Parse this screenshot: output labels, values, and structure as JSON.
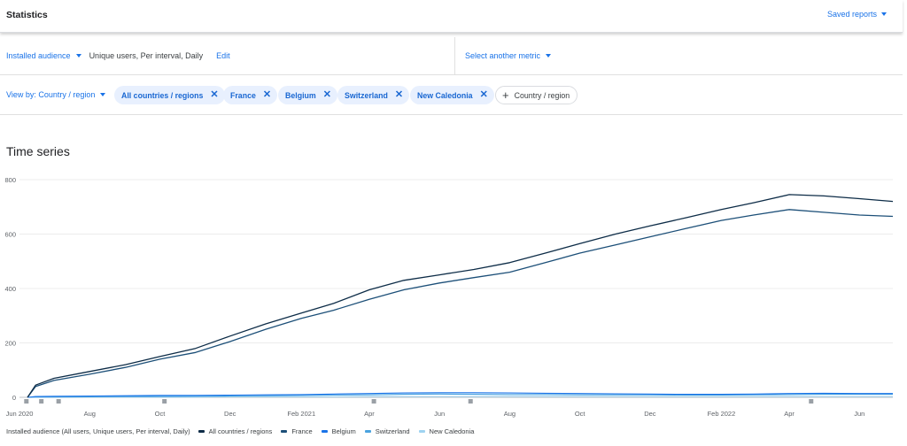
{
  "header": {
    "title": "Statistics",
    "saved_reports": "Saved reports"
  },
  "metric": {
    "name": "Installed audience",
    "description": "Unique users, Per interval, Daily",
    "edit": "Edit",
    "select_another": "Select another metric"
  },
  "filters": {
    "view_by": "View by: Country / region",
    "chips": [
      "All countries / regions",
      "France",
      "Belgium",
      "Switzerland",
      "New Caledonia"
    ],
    "add_chip": "Country / region"
  },
  "section_title": "Time series",
  "legend": {
    "title": "Installed audience (All users, Unique users, Per interval, Daily)",
    "items": [
      "All countries / regions",
      "France",
      "Belgium",
      "Switzerland",
      "New Caledonia"
    ]
  },
  "colors": {
    "accent": "#1a73e8",
    "chip_bg": "#e8f0fe",
    "all": "#0d2c47",
    "france": "#1c4f78",
    "belgium": "#1a73e8",
    "switzerland": "#4aa3df",
    "new_caledonia": "#9fd3f1"
  },
  "chart_data": {
    "type": "line",
    "title": "",
    "xlabel": "",
    "ylabel": "",
    "ylim": [
      0,
      800
    ],
    "y_ticks": [
      0,
      200,
      400,
      600,
      800
    ],
    "x_ticks": [
      "Jun 2020",
      "Aug",
      "Oct",
      "Dec",
      "Feb 2021",
      "Apr",
      "Jun",
      "Aug",
      "Oct",
      "Dec",
      "Feb 2022",
      "Apr",
      "Jun"
    ],
    "x": [
      "2020-06-08",
      "2020-06-15",
      "2020-07-01",
      "2020-08-01",
      "2020-09-01",
      "2020-10-01",
      "2020-11-01",
      "2020-12-01",
      "2021-01-01",
      "2021-02-01",
      "2021-03-01",
      "2021-04-01",
      "2021-05-01",
      "2021-06-01",
      "2021-07-01",
      "2021-08-01",
      "2021-09-01",
      "2021-10-01",
      "2021-11-01",
      "2021-12-01",
      "2022-01-01",
      "2022-02-01",
      "2022-03-01",
      "2022-04-01",
      "2022-05-01",
      "2022-06-01",
      "2022-06-30"
    ],
    "series": [
      {
        "name": "All countries / regions",
        "values": [
          0,
          45,
          70,
          95,
          120,
          150,
          180,
          225,
          270,
          310,
          345,
          395,
          430,
          450,
          470,
          495,
          530,
          565,
          600,
          630,
          660,
          690,
          715,
          745,
          740,
          730,
          720
        ]
      },
      {
        "name": "France",
        "values": [
          0,
          40,
          62,
          85,
          110,
          140,
          165,
          205,
          250,
          290,
          320,
          360,
          395,
          420,
          440,
          460,
          495,
          530,
          560,
          590,
          620,
          650,
          670,
          690,
          680,
          670,
          665
        ]
      },
      {
        "name": "Belgium",
        "values": [
          0,
          3,
          4,
          5,
          6,
          7,
          7,
          8,
          9,
          10,
          12,
          14,
          16,
          17,
          17,
          16,
          15,
          14,
          13,
          12,
          11,
          11,
          12,
          14,
          15,
          14,
          14
        ]
      },
      {
        "name": "Switzerland",
        "values": [
          0,
          1,
          1,
          2,
          3,
          3,
          4,
          5,
          6,
          7,
          8,
          9,
          11,
          12,
          11,
          10,
          10,
          9,
          9,
          9,
          8,
          8,
          9,
          10,
          11,
          11,
          11
        ]
      },
      {
        "name": "New Caledonia",
        "values": [
          0,
          0,
          1,
          1,
          1,
          1,
          1,
          2,
          2,
          2,
          2,
          3,
          3,
          3,
          3,
          3,
          3,
          3,
          3,
          3,
          3,
          3,
          3,
          3,
          3,
          3,
          3
        ]
      }
    ],
    "grid": true,
    "legend_position": "bottom-left"
  }
}
